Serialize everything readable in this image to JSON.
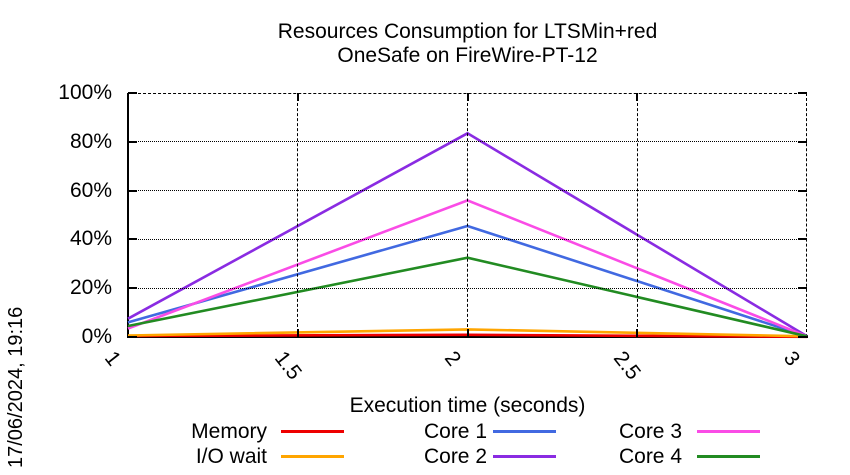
{
  "header": {
    "title_line1": "Resources Consumption for LTSMin+red",
    "title_line2": "OneSafe on FireWire-PT-12",
    "datestamp": "17/06/2024, 19:16"
  },
  "chart_data": {
    "type": "line",
    "title": "Resources Consumption for LTSMin+red OneSafe on FireWire-PT-12",
    "xlabel": "Execution time (seconds)",
    "ylabel": "",
    "xlim": [
      1,
      3
    ],
    "ylim": [
      0,
      100
    ],
    "xticks": [
      1,
      1.5,
      2,
      2.5,
      3
    ],
    "xtick_labels": [
      "1",
      "1.5",
      "2",
      "2.5",
      "3"
    ],
    "yticks": [
      0,
      20,
      40,
      60,
      80,
      100
    ],
    "ytick_labels": [
      "0%",
      "20%",
      "40%",
      "60%",
      "80%",
      "100%"
    ],
    "grid": true,
    "legend_position": "bottom",
    "series": [
      {
        "name": "Memory",
        "color": "#ee0000",
        "x": [
          1,
          2,
          3
        ],
        "values": [
          0.4,
          0.9,
          0.1
        ]
      },
      {
        "name": "I/O wait",
        "color": "#ffa500",
        "x": [
          1,
          2,
          3
        ],
        "values": [
          0.6,
          3.1,
          0.3
        ]
      },
      {
        "name": "Core 1",
        "color": "#4169e1",
        "x": [
          1,
          2,
          3
        ],
        "values": [
          6.0,
          45.5,
          0.3
        ]
      },
      {
        "name": "Core 2",
        "color": "#8a2be2",
        "x": [
          1,
          2,
          3
        ],
        "values": [
          7.5,
          83.5,
          0.3
        ]
      },
      {
        "name": "Core 3",
        "color": "#fa4ce6",
        "x": [
          1,
          2,
          3
        ],
        "values": [
          3.5,
          56.0,
          0.3
        ]
      },
      {
        "name": "Core 4",
        "color": "#228b22",
        "x": [
          1,
          2,
          3
        ],
        "values": [
          4.5,
          32.5,
          0.3
        ]
      }
    ]
  }
}
